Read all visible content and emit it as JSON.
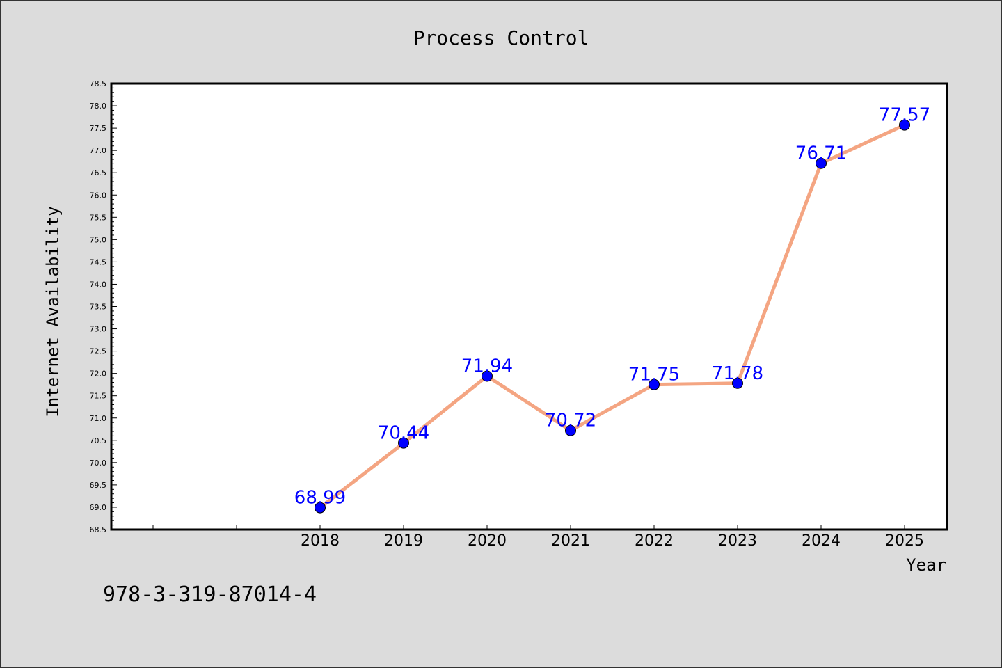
{
  "chart_data": {
    "type": "line",
    "title": "Process Control",
    "xlabel": "Year",
    "ylabel": "Internet Availability",
    "categories": [
      "2018",
      "2019",
      "2020",
      "2021",
      "2022",
      "2023",
      "2024",
      "2025"
    ],
    "series": [
      {
        "values": [
          68.99,
          70.44,
          71.94,
          70.72,
          71.75,
          71.78,
          76.71,
          77.57
        ]
      }
    ],
    "data_labels": [
      "68.99",
      "70.44",
      "71.94",
      "70.72",
      "71.75",
      "71.78",
      "76.71",
      "77.57"
    ],
    "ylim": [
      68.5,
      78.5
    ],
    "yticks": [
      "68.5",
      "69.0",
      "69.5",
      "70.0",
      "70.5",
      "71.0",
      "71.5",
      "72.0",
      "72.5",
      "73.0",
      "73.5",
      "74.0",
      "74.5",
      "75.0",
      "75.5",
      "76.0",
      "76.5",
      "77.0",
      "77.5",
      "78.0",
      "78.5"
    ],
    "grid": false,
    "colors": {
      "line": "#f4a582",
      "marker": "#0000ff",
      "label": "#0000ff",
      "background": "#dcdcdc",
      "plot_background": "#ffffff"
    }
  },
  "annotation": "978-3-319-87014-4"
}
